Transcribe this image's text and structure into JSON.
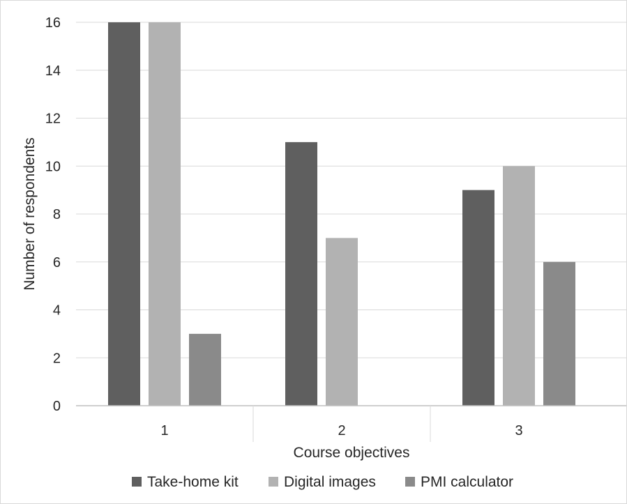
{
  "chart_data": {
    "type": "bar",
    "title": "",
    "xlabel": "Course objectives",
    "ylabel": "Number of respondents",
    "categories": [
      "1",
      "2",
      "3"
    ],
    "series": [
      {
        "name": "Take-home kit",
        "values": [
          16,
          11,
          9
        ],
        "color": "#5f5f5f"
      },
      {
        "name": "Digital images",
        "values": [
          16,
          7,
          10
        ],
        "color": "#b2b2b2"
      },
      {
        "name": "PMI calculator",
        "values": [
          3,
          0,
          6
        ],
        "color": "#8a8a8a"
      }
    ],
    "ylim": [
      0,
      16
    ],
    "yticks": [
      "0",
      "2",
      "4",
      "6",
      "8",
      "10",
      "12",
      "14",
      "16"
    ],
    "grid": true,
    "legend_position": "bottom",
    "colors": {
      "gridline": "#d9d9d9",
      "axis": "#bfbfbf",
      "text": "#262626"
    }
  }
}
